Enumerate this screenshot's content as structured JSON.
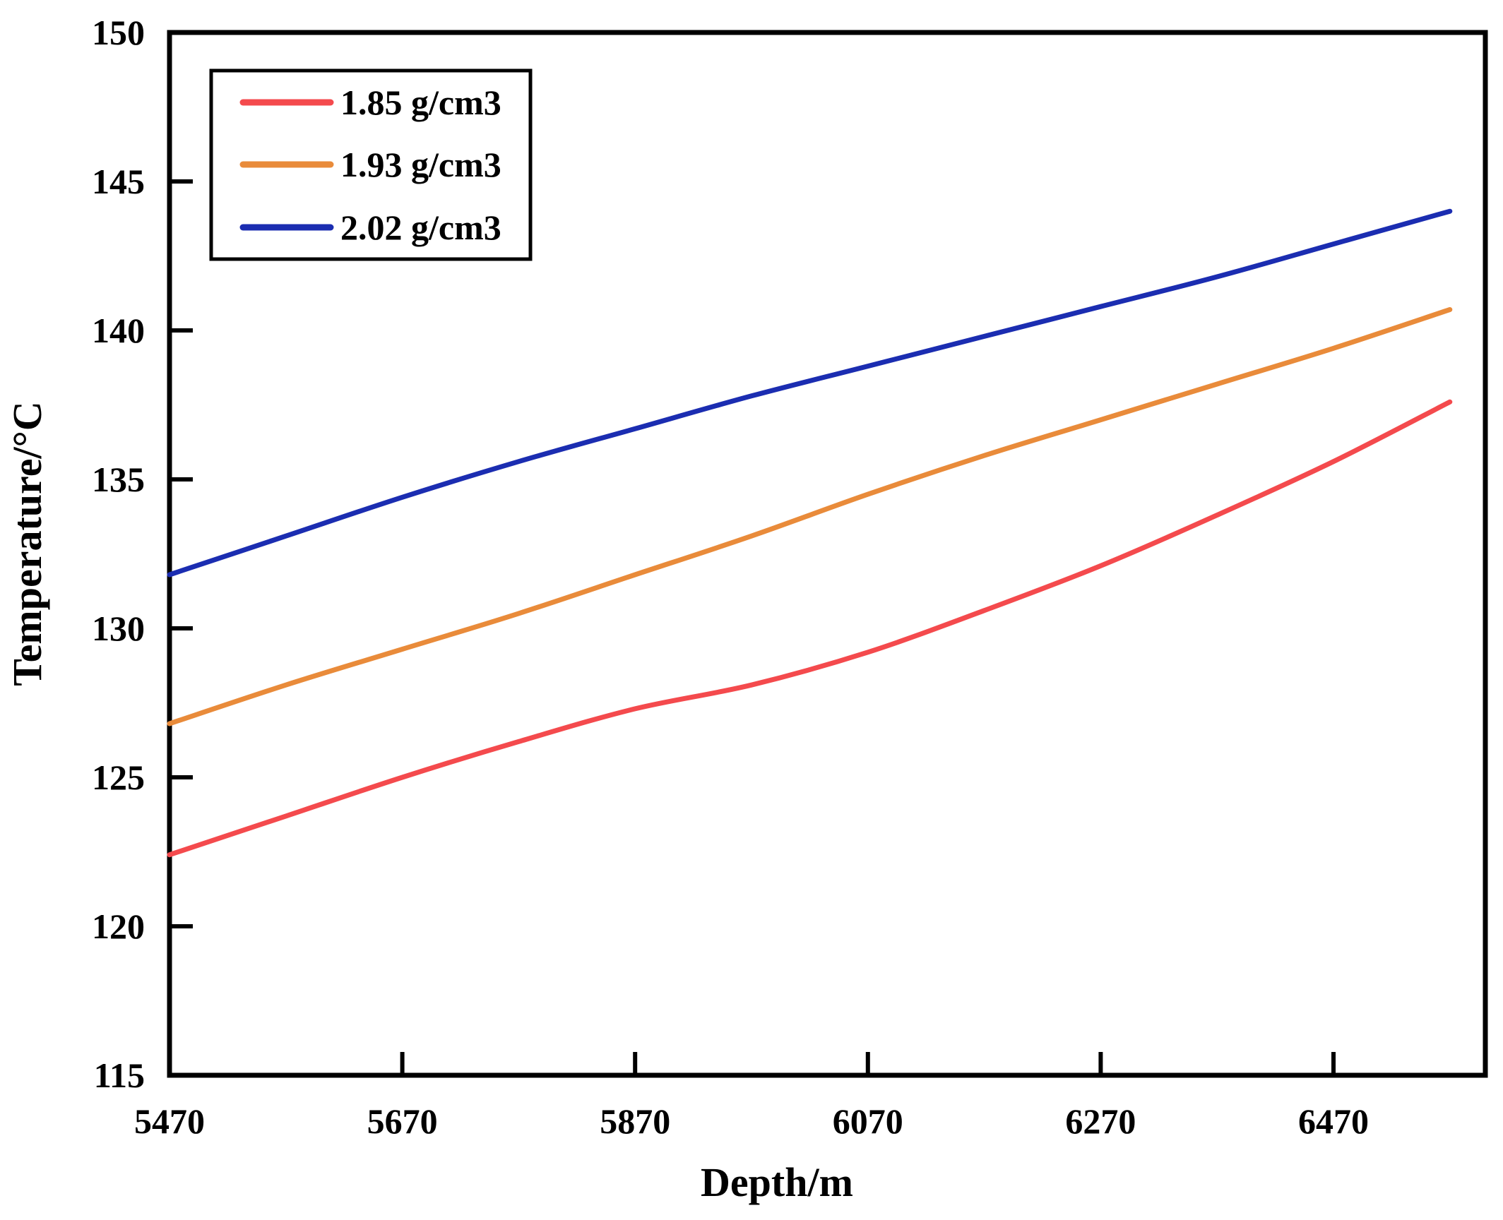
{
  "chart_data": {
    "type": "line",
    "title": "",
    "xlabel": "Depth/m",
    "ylabel": "Temperature/°C",
    "xlim": [
      5470,
      6600
    ],
    "ylim": [
      115,
      150
    ],
    "x_ticks": [
      5470,
      5670,
      5870,
      6070,
      6270,
      6470
    ],
    "y_ticks": [
      115,
      120,
      125,
      130,
      135,
      140,
      145,
      150
    ],
    "grid": false,
    "legend_position": "top-left",
    "frame_color": "#000000",
    "background_color": "#ffffff",
    "x": [
      5470,
      5570,
      5670,
      5770,
      5870,
      5970,
      6070,
      6170,
      6270,
      6370,
      6470,
      6570
    ],
    "series": [
      {
        "name": "1.85 g/cm3",
        "color": "#f44a4d",
        "values": [
          122.4,
          123.7,
          125.0,
          126.2,
          127.3,
          128.1,
          129.2,
          130.6,
          132.1,
          133.8,
          135.6,
          137.6
        ]
      },
      {
        "name": "1.93 g/cm3",
        "color": "#e98b3a",
        "values": [
          126.8,
          128.1,
          129.3,
          130.5,
          131.8,
          133.1,
          134.5,
          135.8,
          137.0,
          138.2,
          139.4,
          140.7
        ]
      },
      {
        "name": "2.02 g/cm3",
        "color": "#1b2db1",
        "values": [
          131.8,
          133.1,
          134.4,
          135.6,
          136.7,
          137.8,
          138.8,
          139.8,
          140.8,
          141.8,
          142.9,
          144.0
        ]
      }
    ]
  }
}
